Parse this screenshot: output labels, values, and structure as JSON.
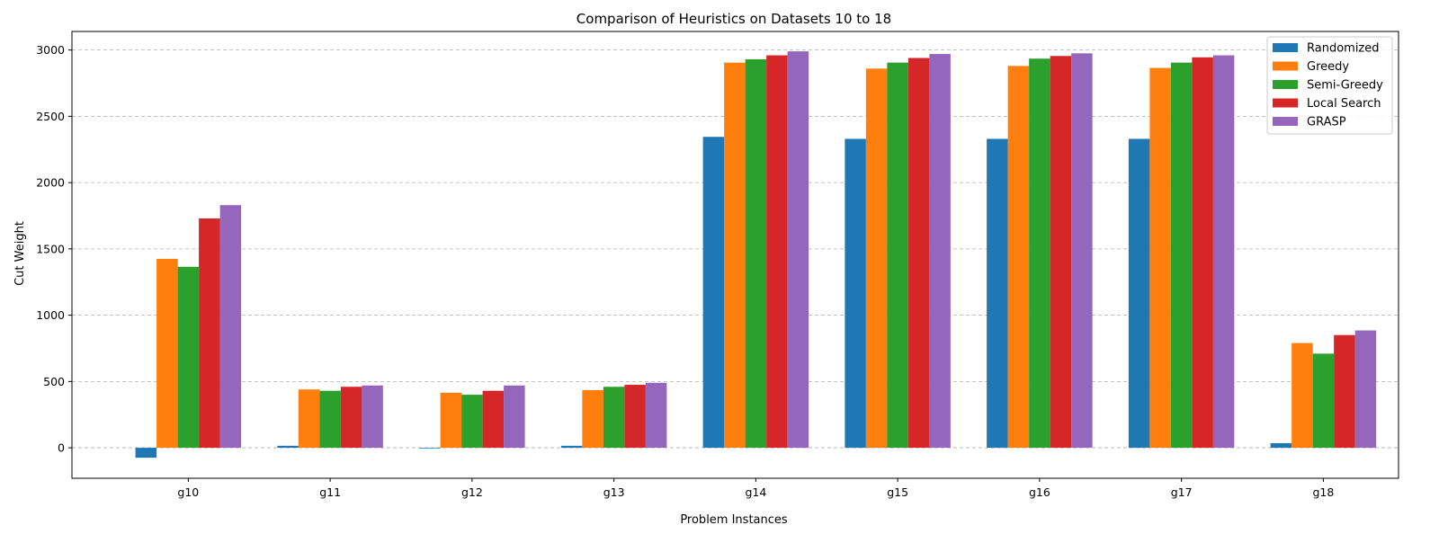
{
  "chart_data": {
    "type": "bar",
    "title": "Comparison of Heuristics on Datasets 10 to 18",
    "xlabel": "Problem Instances",
    "ylabel": "Cut Weight",
    "categories": [
      "g10",
      "g11",
      "g12",
      "g13",
      "g14",
      "g15",
      "g16",
      "g17",
      "g18"
    ],
    "ylim": [
      -230,
      3140
    ],
    "yticks": [
      0,
      500,
      1000,
      1500,
      2000,
      2500,
      3000
    ],
    "grid": "y-dashed",
    "legend_position": "top-right",
    "series": [
      {
        "name": "Randomized",
        "color": "#1f77b4",
        "values": [
          -75,
          15,
          -5,
          15,
          2345,
          2330,
          2330,
          2330,
          35
        ]
      },
      {
        "name": "Greedy",
        "color": "#ff7f0e",
        "values": [
          1425,
          440,
          415,
          435,
          2905,
          2860,
          2880,
          2865,
          790
        ]
      },
      {
        "name": "Semi-Greedy",
        "color": "#2ca02c",
        "values": [
          1365,
          430,
          400,
          460,
          2930,
          2905,
          2935,
          2905,
          710
        ]
      },
      {
        "name": "Local Search",
        "color": "#d62728",
        "values": [
          1730,
          460,
          430,
          475,
          2960,
          2940,
          2955,
          2945,
          850
        ]
      },
      {
        "name": "GRASP",
        "color": "#9467bd",
        "values": [
          1830,
          470,
          470,
          490,
          2990,
          2970,
          2975,
          2960,
          885
        ]
      }
    ]
  }
}
